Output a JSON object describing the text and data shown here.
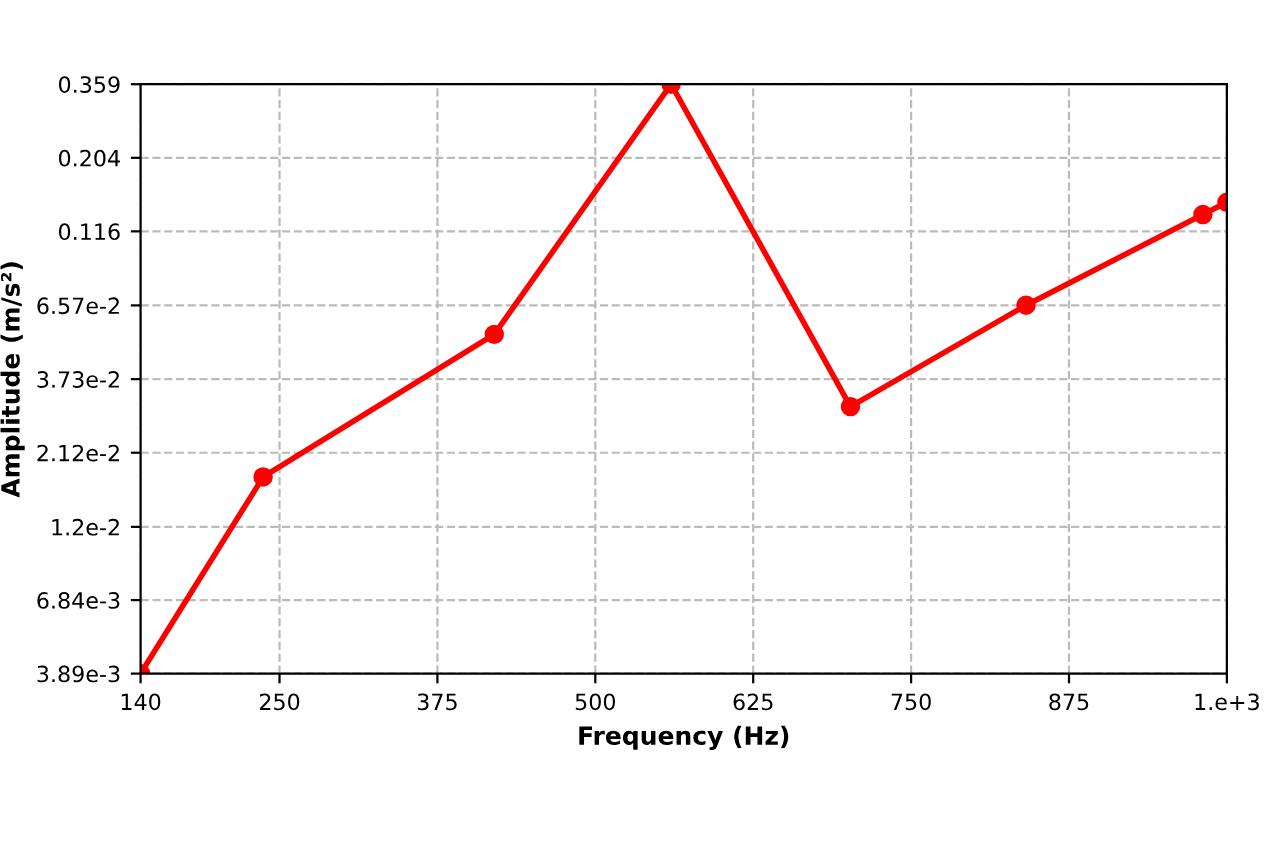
{
  "chart_data": {
    "type": "line",
    "xlabel": "Frequency (Hz)",
    "ylabel": "Amplitude (m/s²)",
    "x": [
      140,
      237,
      420,
      560,
      702,
      841,
      981,
      1000
    ],
    "series": [
      {
        "color": "#ff0000",
        "values": [
          0.00389,
          0.0176,
          0.0526,
          0.359,
          0.0302,
          0.0658,
          0.132,
          0.145
        ]
      }
    ],
    "log": "y",
    "xlim": [
      140,
      1000
    ],
    "ylim": [
      0.00389,
      0.359
    ],
    "xticks": [
      140,
      250,
      375,
      500,
      625,
      750,
      875,
      {
        "value": 1000,
        "label": "1.e+3"
      }
    ],
    "yticks": [
      {
        "value": 0.00389,
        "label": "3.89e-3"
      },
      {
        "value": 0.00684,
        "label": "6.84e-3"
      },
      {
        "value": 0.012,
        "label": "1.2e-2"
      },
      {
        "value": 0.0212,
        "label": "2.12e-2"
      },
      {
        "value": 0.0373,
        "label": "3.73e-2"
      },
      {
        "value": 0.0657,
        "label": "6.57e-2"
      },
      0.116,
      0.204,
      0.359
    ],
    "grid": true,
    "marker": "circle",
    "line_style": "solid"
  }
}
